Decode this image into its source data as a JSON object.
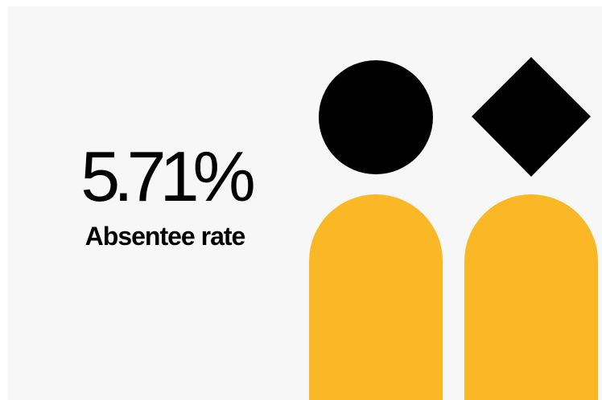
{
  "stat": {
    "value": "5.71%",
    "label": "Absentee rate"
  },
  "colors": {
    "background": "#f7f7f7",
    "text": "#000000",
    "accent": "#fbb826",
    "shape": "#000000"
  },
  "figures": [
    {
      "head_icon": "circle-icon"
    },
    {
      "head_icon": "diamond-icon"
    }
  ]
}
